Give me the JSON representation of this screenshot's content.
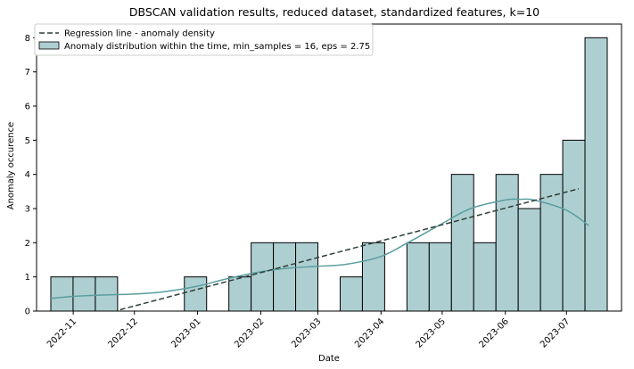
{
  "chart_data": {
    "type": "bar",
    "title": "DBSCAN validation results, reduced dataset, standardized features, k=10",
    "xlabel": "Date",
    "ylabel": "Anomaly occurence",
    "x_scale": "date",
    "xlim": [
      "2022-10-14",
      "2023-07-28"
    ],
    "ylim": [
      0,
      8.4
    ],
    "y_ticks": [
      "0",
      "1",
      "2",
      "3",
      "4",
      "5",
      "6",
      "7",
      "8"
    ],
    "x_ticks": [
      {
        "date": "2022-11-01",
        "label": "2022-11"
      },
      {
        "date": "2022-12-01",
        "label": "2022-12"
      },
      {
        "date": "2023-01-01",
        "label": "2023-01"
      },
      {
        "date": "2023-02-01",
        "label": "2023-02"
      },
      {
        "date": "2023-03-01",
        "label": "2023-03"
      },
      {
        "date": "2023-04-01",
        "label": "2023-04"
      },
      {
        "date": "2023-05-01",
        "label": "2023-05"
      },
      {
        "date": "2023-06-01",
        "label": "2023-06"
      },
      {
        "date": "2023-07-01",
        "label": "2023-07"
      }
    ],
    "bins": {
      "start": "2022-10-21",
      "end": "2023-07-21",
      "values": [
        1,
        1,
        1,
        0,
        0,
        0,
        1,
        0,
        1,
        2,
        2,
        2,
        0,
        1,
        2,
        0,
        2,
        2,
        4,
        2,
        4,
        3,
        4,
        5,
        8
      ]
    },
    "bar_color": "#aecfd1",
    "bar_edge_color": "#000000",
    "kde_color": "#5a9ea0",
    "regression_color": "#2f3f3a",
    "kde": [
      [
        "2022-10-21",
        0.37
      ],
      [
        "2022-11-01",
        0.43
      ],
      [
        "2022-11-15",
        0.47
      ],
      [
        "2022-12-01",
        0.5
      ],
      [
        "2022-12-15",
        0.56
      ],
      [
        "2023-01-01",
        0.73
      ],
      [
        "2023-01-15",
        0.94
      ],
      [
        "2023-02-01",
        1.15
      ],
      [
        "2023-02-15",
        1.26
      ],
      [
        "2023-03-01",
        1.31
      ],
      [
        "2023-03-15",
        1.37
      ],
      [
        "2023-04-01",
        1.6
      ],
      [
        "2023-04-15",
        2.03
      ],
      [
        "2023-05-01",
        2.56
      ],
      [
        "2023-05-15",
        3.0
      ],
      [
        "2023-06-01",
        3.25
      ],
      [
        "2023-06-08",
        3.27
      ],
      [
        "2023-06-15",
        3.25
      ],
      [
        "2023-07-01",
        2.95
      ],
      [
        "2023-07-12",
        2.5
      ]
    ],
    "regression": {
      "start": [
        "2022-11-24",
        0.04
      ],
      "end": [
        "2023-07-07",
        3.58
      ]
    },
    "legend": {
      "position": "top-left",
      "entries": [
        {
          "label": "Regression line - anomaly density",
          "kind": "dashed-line"
        },
        {
          "label": "Anomaly distribution within the time, min_samples = 16, eps = 2.75",
          "kind": "patch"
        }
      ]
    }
  }
}
